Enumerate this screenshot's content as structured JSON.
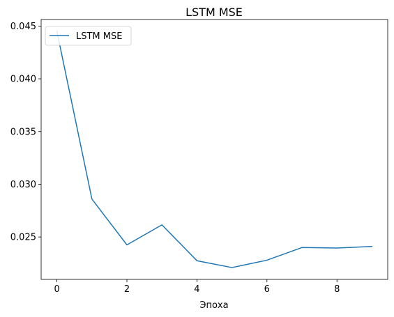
{
  "chart_data": {
    "type": "line",
    "title": "LSTM MSE",
    "xlabel": "Эпоха",
    "ylabel": "",
    "x": [
      0,
      1,
      2,
      3,
      4,
      5,
      6,
      7,
      8,
      9
    ],
    "series": [
      {
        "name": "LSTM MSE",
        "color": "#1f77b4",
        "values": [
          0.0445,
          0.0286,
          0.02425,
          0.02615,
          0.02275,
          0.0221,
          0.0228,
          0.024,
          0.02395,
          0.0241
        ]
      }
    ],
    "xlim": [
      -0.45,
      9.45
    ],
    "ylim": [
      0.02098,
      0.04562
    ],
    "xticks": [
      0,
      2,
      4,
      6,
      8
    ],
    "xtick_labels": [
      "0",
      "2",
      "4",
      "6",
      "8"
    ],
    "yticks": [
      0.025,
      0.03,
      0.035,
      0.04,
      0.045
    ],
    "ytick_labels": [
      "0.025",
      "0.030",
      "0.035",
      "0.040",
      "0.045"
    ],
    "grid": false,
    "legend_position": "top-left"
  }
}
